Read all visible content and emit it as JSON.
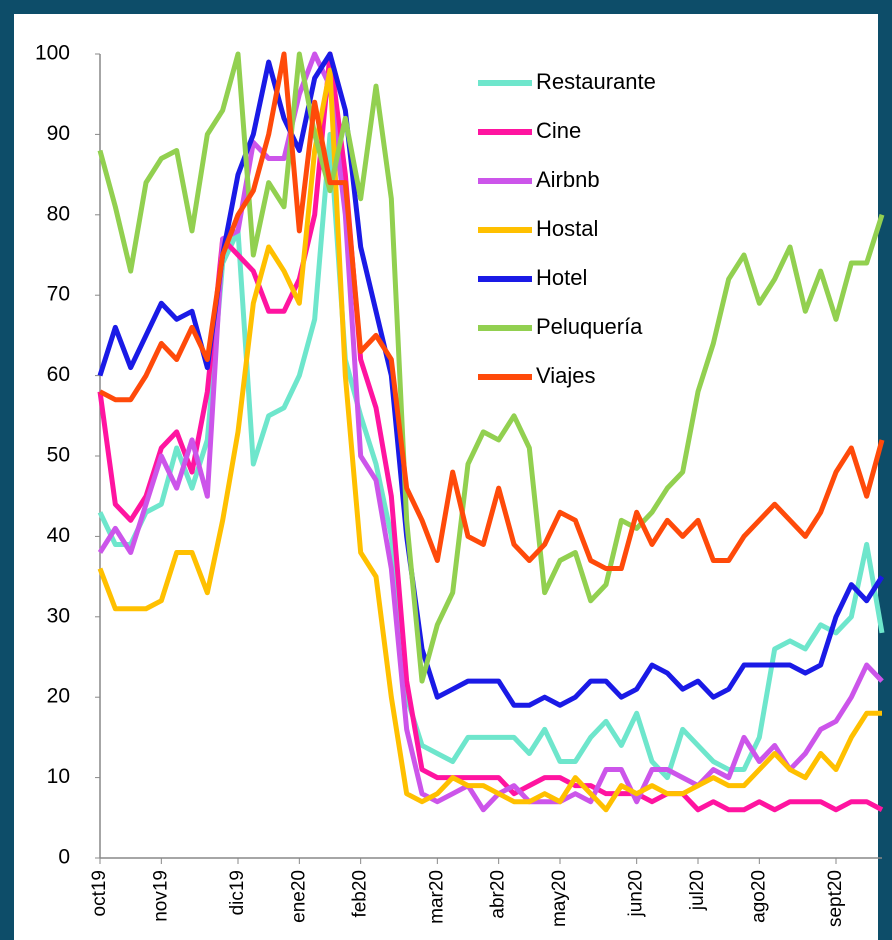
{
  "chart_data": {
    "type": "line",
    "categories": [
      "oct19",
      null,
      null,
      null,
      "nov19",
      null,
      null,
      null,
      null,
      "dic19",
      null,
      null,
      null,
      "ene20",
      null,
      null,
      null,
      "feb20",
      null,
      null,
      null,
      null,
      "mar20",
      null,
      null,
      null,
      "abr20",
      null,
      null,
      null,
      "may20",
      null,
      null,
      null,
      null,
      "jun20",
      null,
      null,
      null,
      "jul20",
      null,
      null,
      null,
      "ago20",
      null,
      null,
      null,
      null,
      "sept20",
      null,
      null,
      null
    ],
    "ylim": [
      0,
      100
    ],
    "yticks": [
      0,
      10,
      20,
      30,
      40,
      50,
      60,
      70,
      80,
      90,
      100
    ],
    "grid": false,
    "legend": "upper right",
    "series": [
      {
        "name": "Restaurante",
        "color": "#6ee6cc",
        "values": [
          43,
          39,
          39,
          43,
          44,
          51,
          46,
          52,
          74,
          78,
          49,
          55,
          56,
          60,
          67,
          90,
          62,
          55,
          49,
          40,
          20,
          14,
          13,
          12,
          15,
          15,
          15,
          15,
          13,
          16,
          12,
          12,
          15,
          17,
          14,
          18,
          12,
          10,
          16,
          14,
          12,
          11,
          11,
          15,
          26,
          27,
          26,
          29,
          28,
          30,
          39,
          28
        ]
      },
      {
        "name": "Cine",
        "color": "#ff14a0",
        "values": [
          58,
          44,
          42,
          45,
          51,
          53,
          48,
          58,
          77,
          75,
          73,
          68,
          68,
          72,
          80,
          100,
          85,
          62,
          56,
          45,
          22,
          11,
          10,
          10,
          10,
          10,
          10,
          8,
          9,
          10,
          10,
          9,
          9,
          8,
          8,
          8,
          7,
          8,
          8,
          6,
          7,
          6,
          6,
          7,
          6,
          7,
          7,
          7,
          6,
          7,
          7,
          6
        ]
      },
      {
        "name": "Airbnb",
        "color": "#cc55ea",
        "values": [
          38,
          41,
          38,
          44,
          50,
          46,
          52,
          45,
          77,
          78,
          89,
          87,
          87,
          95,
          100,
          96,
          80,
          50,
          47,
          36,
          16,
          8,
          7,
          8,
          9,
          6,
          8,
          9,
          7,
          7,
          7,
          8,
          7,
          11,
          11,
          7,
          11,
          11,
          10,
          9,
          11,
          10,
          15,
          12,
          14,
          11,
          13,
          16,
          17,
          20,
          24,
          22
        ]
      },
      {
        "name": "Hostal",
        "color": "#ffc000",
        "values": [
          36,
          31,
          31,
          31,
          32,
          38,
          38,
          33,
          42,
          53,
          69,
          76,
          73,
          69,
          88,
          98,
          60,
          38,
          35,
          20,
          8,
          7,
          8,
          10,
          9,
          9,
          8,
          7,
          7,
          8,
          7,
          10,
          8,
          6,
          9,
          8,
          9,
          8,
          8,
          9,
          10,
          9,
          9,
          11,
          13,
          11,
          10,
          13,
          11,
          15,
          18,
          18
        ]
      },
      {
        "name": "Hotel",
        "color": "#1a1ae6",
        "values": [
          60,
          66,
          61,
          65,
          69,
          67,
          68,
          61,
          75,
          85,
          90,
          99,
          92,
          88,
          97,
          100,
          93,
          76,
          68,
          60,
          40,
          26,
          20,
          21,
          22,
          22,
          22,
          19,
          19,
          20,
          19,
          20,
          22,
          22,
          20,
          21,
          24,
          23,
          21,
          22,
          20,
          21,
          24,
          24,
          24,
          24,
          23,
          24,
          30,
          34,
          32,
          35
        ]
      },
      {
        "name": "Peluquería",
        "color": "#92d050",
        "values": [
          88,
          81,
          73,
          84,
          87,
          88,
          78,
          90,
          93,
          100,
          75,
          84,
          81,
          100,
          90,
          83,
          92,
          82,
          96,
          82,
          42,
          22,
          29,
          33,
          49,
          53,
          52,
          55,
          51,
          33,
          37,
          38,
          32,
          34,
          42,
          41,
          43,
          46,
          48,
          58,
          64,
          72,
          75,
          69,
          72,
          76,
          68,
          73,
          67,
          74,
          74,
          80
        ]
      },
      {
        "name": "Viajes",
        "color": "#ff4a0a",
        "values": [
          58,
          57,
          57,
          60,
          64,
          62,
          66,
          62,
          75,
          80,
          83,
          90,
          100,
          78,
          94,
          84,
          84,
          63,
          65,
          62,
          46,
          42,
          37,
          48,
          40,
          39,
          46,
          39,
          37,
          39,
          43,
          42,
          37,
          36,
          36,
          43,
          39,
          42,
          40,
          42,
          37,
          37,
          40,
          42,
          44,
          42,
          40,
          43,
          48,
          51,
          45,
          52
        ]
      }
    ]
  }
}
